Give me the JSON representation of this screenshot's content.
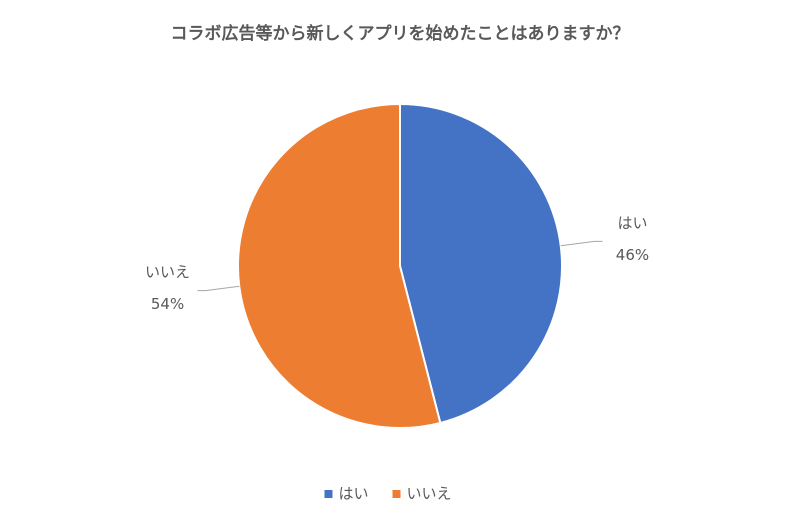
{
  "chart_data": {
    "type": "pie",
    "title": "コラボ広告等から新しくアプリを始めたことはありますか？",
    "categories": [
      "はい",
      "いいえ"
    ],
    "values": [
      46,
      54
    ],
    "value_labels": [
      "46%",
      "54%"
    ],
    "colors": [
      "#4472c4",
      "#ed7d31"
    ],
    "legend": "bottom"
  }
}
